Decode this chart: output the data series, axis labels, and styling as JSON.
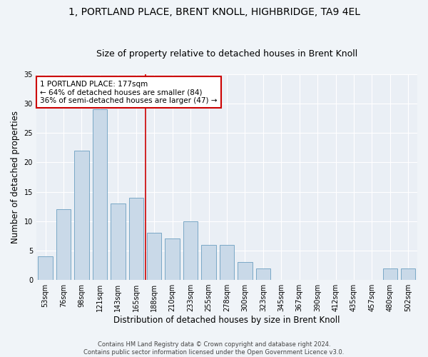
{
  "title": "1, PORTLAND PLACE, BRENT KNOLL, HIGHBRIDGE, TA9 4EL",
  "subtitle": "Size of property relative to detached houses in Brent Knoll",
  "xlabel": "Distribution of detached houses by size in Brent Knoll",
  "ylabel": "Number of detached properties",
  "categories": [
    "53sqm",
    "76sqm",
    "98sqm",
    "121sqm",
    "143sqm",
    "165sqm",
    "188sqm",
    "210sqm",
    "233sqm",
    "255sqm",
    "278sqm",
    "300sqm",
    "323sqm",
    "345sqm",
    "367sqm",
    "390sqm",
    "412sqm",
    "435sqm",
    "457sqm",
    "480sqm",
    "502sqm"
  ],
  "values": [
    4,
    12,
    22,
    29,
    13,
    14,
    8,
    7,
    10,
    6,
    6,
    3,
    2,
    0,
    0,
    0,
    0,
    0,
    0,
    2,
    2
  ],
  "bar_color": "#c9d9e8",
  "bar_edge_color": "#6a9ec0",
  "bar_edge_width": 0.6,
  "vline_color": "#cc0000",
  "annotation_text": "1 PORTLAND PLACE: 177sqm\n← 64% of detached houses are smaller (84)\n36% of semi-detached houses are larger (47) →",
  "annotation_box_color": "#ffffff",
  "annotation_box_edge_color": "#cc0000",
  "footer_line1": "Contains HM Land Registry data © Crown copyright and database right 2024.",
  "footer_line2": "Contains public sector information licensed under the Open Government Licence v3.0.",
  "ylim": [
    0,
    35
  ],
  "yticks": [
    0,
    5,
    10,
    15,
    20,
    25,
    30,
    35
  ],
  "bg_color": "#eaeff5",
  "fig_bg_color": "#f0f4f8",
  "grid_color": "#ffffff",
  "title_fontsize": 10,
  "subtitle_fontsize": 9,
  "xlabel_fontsize": 8.5,
  "ylabel_fontsize": 8.5,
  "tick_fontsize": 7,
  "footer_fontsize": 6,
  "annotation_fontsize": 7.5,
  "vline_x_index": 5.52
}
